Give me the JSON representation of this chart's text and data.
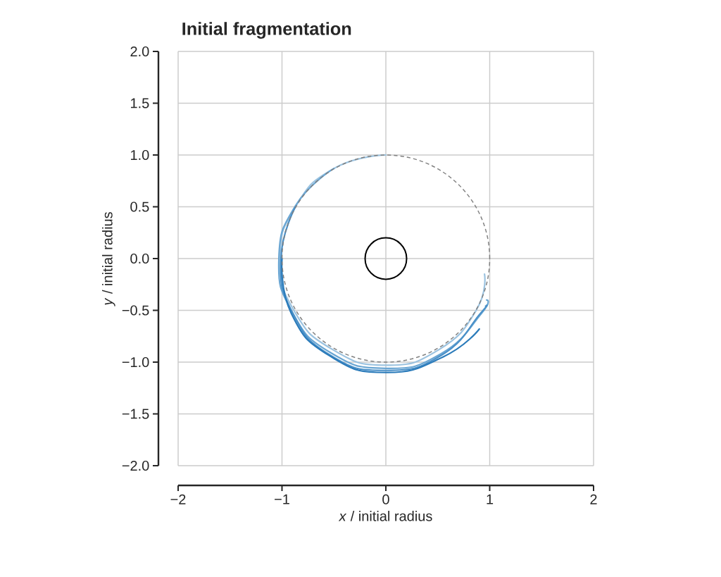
{
  "chart_data": {
    "type": "line",
    "title": "Initial fragmentation",
    "xlabel": "*x* / initial radius",
    "ylabel": "*y* / initial radius",
    "xlim": [
      -2,
      2
    ],
    "ylim": [
      -2,
      2
    ],
    "xticks": [
      {
        "value": -2,
        "label": "−2"
      },
      {
        "value": -1,
        "label": "−1"
      },
      0,
      1,
      2
    ],
    "yticks": [
      {
        "value": -2,
        "label": "−2.0"
      },
      {
        "value": -1.5,
        "label": "−1.5"
      },
      {
        "value": -1,
        "label": "−1.0"
      },
      {
        "value": -0.5,
        "label": "−0.5"
      },
      {
        "value": 0,
        "label": "0.0"
      },
      {
        "value": 0.5,
        "label": "0.5"
      },
      {
        "value": 1,
        "label": "1.0"
      },
      {
        "value": 1.5,
        "label": "1.5"
      },
      {
        "value": 2,
        "label": "2.0"
      }
    ],
    "grid": true,
    "series": [
      {
        "color": "#9cc3e0",
        "line_style": "solid",
        "x": [
          0,
          -0.5,
          -0.87,
          -1.02,
          -0.88,
          -0.51,
          0,
          0.51,
          0.87,
          0.95
        ],
        "values": [
          1,
          0.87,
          0.5,
          0,
          -0.51,
          -0.88,
          -1.03,
          -0.88,
          -0.5,
          -0.15
        ]
      },
      {
        "color": "#6aa6d3",
        "line_style": "solid",
        "x": [
          -0.5,
          -0.87,
          -1.03,
          -0.9,
          -0.53,
          0,
          0.53,
          0.92,
          0.97
        ],
        "values": [
          0.87,
          0.51,
          0,
          -0.52,
          -0.91,
          -1.06,
          -0.92,
          -0.53,
          -0.4
        ]
      },
      {
        "color": "#4a90c8",
        "line_style": "solid",
        "x": [
          -0.87,
          -1.01,
          -0.9,
          -0.54,
          0,
          0.54,
          0.91,
          0.96
        ],
        "values": [
          0.5,
          0,
          -0.52,
          -0.93,
          -1.08,
          -0.93,
          -0.53,
          -0.46
        ]
      },
      {
        "color": "#2b7bba",
        "line_style": "solid",
        "x": [
          -1,
          -0.91,
          -0.54,
          0,
          0.55,
          0.9
        ],
        "values": [
          0,
          -0.53,
          -0.94,
          -1.1,
          -0.95,
          -0.68
        ]
      }
    ]
  }
}
